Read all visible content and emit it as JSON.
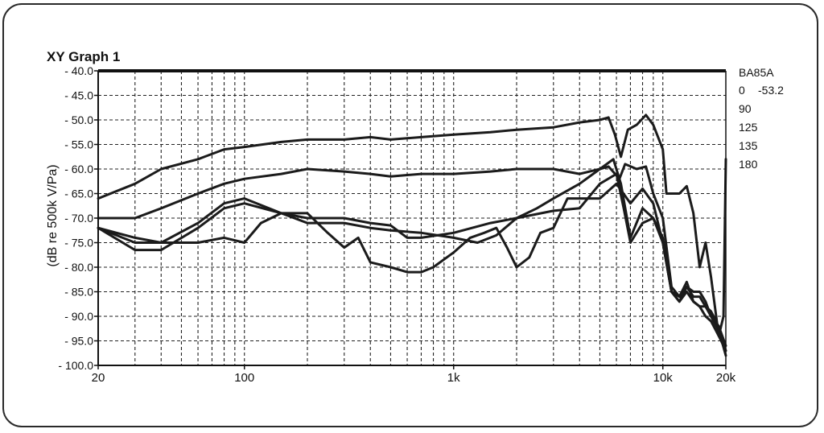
{
  "chart_data": {
    "type": "line",
    "title": "XY Graph 1",
    "xlabel": "",
    "ylabel": "(dB re 500k V/Pa)",
    "xscale": "log",
    "xlim": [
      20,
      20000
    ],
    "ylim": [
      -100,
      -40
    ],
    "grid": true,
    "x_tick_values": [
      20,
      100,
      1000,
      10000,
      20000
    ],
    "x_tick_labels": [
      "20",
      "100",
      "1k",
      "10k",
      "20k"
    ],
    "x_minor_grid": [
      30,
      40,
      50,
      60,
      70,
      80,
      90,
      200,
      300,
      400,
      500,
      600,
      700,
      800,
      900,
      2000,
      3000,
      4000,
      5000,
      6000,
      7000,
      8000,
      9000
    ],
    "y_tick_values": [
      -40,
      -45,
      -50,
      -55,
      -60,
      -65,
      -70,
      -75,
      -80,
      -85,
      -90,
      -95,
      -100
    ],
    "y_tick_labels": [
      "- 40.0",
      "- 45.0",
      "- 50.0",
      "- 55.0",
      "- 60.0",
      "- 65.0",
      "- 70.0",
      "- 75.0",
      "- 80.0",
      "- 85.0",
      "- 90.0",
      "- 95.0",
      "- 100.0"
    ],
    "reference_line": -40,
    "legend": {
      "position": "right",
      "title": "BA85A",
      "entries": [
        {
          "label": "0",
          "value": "-53.2"
        },
        {
          "label": "90",
          "value": ""
        },
        {
          "label": "125",
          "value": ""
        },
        {
          "label": "135",
          "value": ""
        },
        {
          "label": "180",
          "value": ""
        }
      ]
    },
    "series": [
      {
        "name": "0",
        "points": [
          [
            20,
            -66
          ],
          [
            30,
            -63
          ],
          [
            40,
            -60
          ],
          [
            60,
            -58
          ],
          [
            80,
            -56
          ],
          [
            100,
            -55.5
          ],
          [
            150,
            -54.5
          ],
          [
            200,
            -54
          ],
          [
            300,
            -54
          ],
          [
            400,
            -53.5
          ],
          [
            500,
            -54
          ],
          [
            700,
            -53.5
          ],
          [
            1000,
            -53
          ],
          [
            1500,
            -52.5
          ],
          [
            2000,
            -52
          ],
          [
            3000,
            -51.5
          ],
          [
            4000,
            -50.5
          ],
          [
            5000,
            -50
          ],
          [
            5500,
            -49.5
          ],
          [
            5900,
            -53
          ],
          [
            6300,
            -57.5
          ],
          [
            6800,
            -52
          ],
          [
            7500,
            -51
          ],
          [
            8300,
            -49
          ],
          [
            9000,
            -51
          ],
          [
            10000,
            -56
          ],
          [
            10400,
            -65
          ],
          [
            11000,
            -65
          ],
          [
            12000,
            -65
          ],
          [
            13000,
            -63.5
          ],
          [
            14000,
            -69
          ],
          [
            15000,
            -80
          ],
          [
            16000,
            -75
          ],
          [
            17000,
            -82
          ],
          [
            18500,
            -94
          ],
          [
            19500,
            -90
          ],
          [
            20000,
            -58
          ]
        ]
      },
      {
        "name": "90",
        "points": [
          [
            20,
            -70
          ],
          [
            30,
            -70
          ],
          [
            40,
            -68
          ],
          [
            60,
            -65
          ],
          [
            80,
            -63
          ],
          [
            100,
            -62
          ],
          [
            150,
            -61
          ],
          [
            200,
            -60
          ],
          [
            300,
            -60.5
          ],
          [
            400,
            -61
          ],
          [
            500,
            -61.5
          ],
          [
            700,
            -61
          ],
          [
            1000,
            -61
          ],
          [
            1500,
            -60.5
          ],
          [
            2000,
            -60
          ],
          [
            3000,
            -60
          ],
          [
            4000,
            -61
          ],
          [
            5000,
            -60
          ],
          [
            5500,
            -59.5
          ],
          [
            6200,
            -62
          ],
          [
            6600,
            -59
          ],
          [
            7500,
            -60
          ],
          [
            8300,
            -59.5
          ],
          [
            9000,
            -65
          ],
          [
            10000,
            -70
          ],
          [
            11000,
            -84
          ],
          [
            12000,
            -86
          ],
          [
            13000,
            -84
          ],
          [
            14000,
            -85
          ],
          [
            15000,
            -85
          ],
          [
            16000,
            -87
          ],
          [
            17000,
            -90
          ],
          [
            18500,
            -92
          ],
          [
            20000,
            -96
          ]
        ]
      },
      {
        "name": "125",
        "points": [
          [
            20,
            -72
          ],
          [
            30,
            -75
          ],
          [
            40,
            -75
          ],
          [
            60,
            -75
          ],
          [
            80,
            -74
          ],
          [
            100,
            -75
          ],
          [
            120,
            -71
          ],
          [
            150,
            -69
          ],
          [
            200,
            -69
          ],
          [
            250,
            -73
          ],
          [
            300,
            -76
          ],
          [
            350,
            -74
          ],
          [
            400,
            -79
          ],
          [
            500,
            -80
          ],
          [
            600,
            -81
          ],
          [
            700,
            -81
          ],
          [
            800,
            -80
          ],
          [
            1000,
            -77
          ],
          [
            1200,
            -74
          ],
          [
            1400,
            -73
          ],
          [
            1600,
            -72
          ],
          [
            1800,
            -76
          ],
          [
            2000,
            -80
          ],
          [
            2300,
            -78
          ],
          [
            2600,
            -73
          ],
          [
            3000,
            -72
          ],
          [
            3500,
            -66
          ],
          [
            4000,
            -66
          ],
          [
            5000,
            -66
          ],
          [
            6000,
            -63
          ],
          [
            7000,
            -67
          ],
          [
            8000,
            -64
          ],
          [
            9000,
            -67
          ],
          [
            10000,
            -75
          ],
          [
            11000,
            -85
          ],
          [
            12000,
            -87
          ],
          [
            13000,
            -84
          ],
          [
            14000,
            -86
          ],
          [
            15000,
            -86
          ],
          [
            16000,
            -88
          ],
          [
            17000,
            -89
          ],
          [
            18000,
            -91
          ],
          [
            20000,
            -98
          ]
        ]
      },
      {
        "name": "135",
        "points": [
          [
            20,
            -72
          ],
          [
            30,
            -76.5
          ],
          [
            40,
            -76.5
          ],
          [
            60,
            -72
          ],
          [
            80,
            -68
          ],
          [
            100,
            -67
          ],
          [
            150,
            -69
          ],
          [
            200,
            -70
          ],
          [
            300,
            -70
          ],
          [
            400,
            -71
          ],
          [
            500,
            -71.5
          ],
          [
            600,
            -74
          ],
          [
            700,
            -74
          ],
          [
            1000,
            -73
          ],
          [
            1500,
            -71
          ],
          [
            2000,
            -70
          ],
          [
            3000,
            -68.5
          ],
          [
            4000,
            -68
          ],
          [
            5000,
            -63
          ],
          [
            6000,
            -61
          ],
          [
            6500,
            -68
          ],
          [
            7000,
            -75
          ],
          [
            8000,
            -71
          ],
          [
            9000,
            -70
          ],
          [
            10000,
            -74
          ],
          [
            11000,
            -85
          ],
          [
            12000,
            -86
          ],
          [
            13000,
            -83
          ],
          [
            14000,
            -87
          ],
          [
            15000,
            -88
          ],
          [
            16000,
            -88
          ],
          [
            17000,
            -90
          ],
          [
            18500,
            -93
          ],
          [
            20000,
            -97
          ]
        ]
      },
      {
        "name": "180",
        "points": [
          [
            20,
            -72
          ],
          [
            30,
            -74
          ],
          [
            40,
            -75
          ],
          [
            60,
            -71
          ],
          [
            80,
            -67
          ],
          [
            100,
            -66
          ],
          [
            150,
            -69
          ],
          [
            200,
            -71
          ],
          [
            300,
            -71
          ],
          [
            400,
            -72
          ],
          [
            500,
            -72.5
          ],
          [
            700,
            -73
          ],
          [
            1000,
            -74
          ],
          [
            1300,
            -75
          ],
          [
            1600,
            -73.5
          ],
          [
            2000,
            -70
          ],
          [
            2500,
            -68
          ],
          [
            3000,
            -66
          ],
          [
            4000,
            -63
          ],
          [
            5000,
            -60
          ],
          [
            5800,
            -58
          ],
          [
            6300,
            -63
          ],
          [
            7000,
            -74
          ],
          [
            8000,
            -68
          ],
          [
            9000,
            -70
          ],
          [
            10000,
            -75
          ],
          [
            11000,
            -85
          ],
          [
            12000,
            -87
          ],
          [
            13000,
            -85
          ],
          [
            14000,
            -87
          ],
          [
            15000,
            -88
          ],
          [
            16000,
            -90
          ],
          [
            17000,
            -91
          ],
          [
            18500,
            -94
          ],
          [
            20000,
            -97
          ]
        ]
      }
    ]
  }
}
